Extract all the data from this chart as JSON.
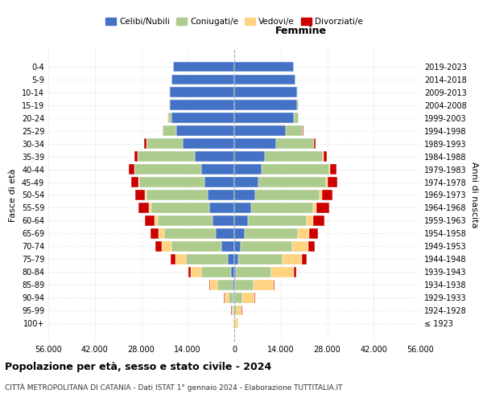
{
  "age_groups": [
    "100+",
    "95-99",
    "90-94",
    "85-89",
    "80-84",
    "75-79",
    "70-74",
    "65-69",
    "60-64",
    "55-59",
    "50-54",
    "45-49",
    "40-44",
    "35-39",
    "30-34",
    "25-29",
    "20-24",
    "15-19",
    "10-14",
    "5-9",
    "0-4"
  ],
  "birth_years": [
    "≤ 1923",
    "1924-1928",
    "1929-1933",
    "1934-1938",
    "1939-1943",
    "1944-1948",
    "1949-1953",
    "1954-1958",
    "1959-1963",
    "1964-1968",
    "1969-1973",
    "1974-1978",
    "1979-1983",
    "1984-1988",
    "1989-1993",
    "1994-1998",
    "1999-2003",
    "2004-2008",
    "2009-2013",
    "2014-2018",
    "2019-2023"
  ],
  "colors": {
    "celibe": "#4472C4",
    "coniugato": "#AECB8E",
    "vedovo": "#FFD380",
    "divorziato": "#CC0000"
  },
  "males_celibe": [
    80,
    120,
    250,
    500,
    1000,
    2000,
    4000,
    5500,
    6500,
    7500,
    8000,
    9000,
    10000,
    12000,
    15500,
    17500,
    19000,
    19500,
    19500,
    19000,
    18500
  ],
  "males_coniugato": [
    80,
    250,
    1500,
    4500,
    9000,
    12500,
    15000,
    15500,
    16500,
    17500,
    18500,
    19500,
    20000,
    17000,
    11000,
    4000,
    1000,
    200,
    80,
    0,
    0
  ],
  "males_vedovo": [
    250,
    400,
    1200,
    2200,
    3200,
    3200,
    2800,
    1900,
    1100,
    650,
    380,
    250,
    130,
    70,
    40,
    15,
    8,
    3,
    0,
    0,
    0
  ],
  "males_divorziato": [
    40,
    80,
    130,
    280,
    550,
    1400,
    1900,
    2400,
    2900,
    3300,
    2900,
    2400,
    1700,
    1100,
    550,
    180,
    70,
    15,
    8,
    0,
    0
  ],
  "females_nubile": [
    80,
    120,
    180,
    280,
    550,
    1100,
    2000,
    3200,
    4200,
    5200,
    6200,
    7200,
    8200,
    9200,
    12500,
    15500,
    18000,
    19000,
    19000,
    18500,
    18000
  ],
  "females_coniugata": [
    180,
    550,
    2200,
    5500,
    10500,
    13500,
    15500,
    16000,
    17500,
    18500,
    19500,
    20500,
    20500,
    17500,
    11500,
    5000,
    1400,
    350,
    80,
    0,
    0
  ],
  "females_vedova": [
    900,
    1600,
    3700,
    6000,
    7000,
    5700,
    4800,
    3300,
    2100,
    1100,
    650,
    380,
    180,
    90,
    45,
    18,
    8,
    4,
    0,
    0,
    0
  ],
  "females_divorziata": [
    40,
    90,
    180,
    370,
    650,
    1400,
    1900,
    2700,
    3300,
    3800,
    3300,
    2900,
    1900,
    1100,
    550,
    230,
    90,
    25,
    8,
    0,
    0
  ],
  "xlim": 56000,
  "xticks": [
    -56000,
    -42000,
    -28000,
    -14000,
    0,
    14000,
    28000,
    42000,
    56000
  ],
  "xtick_labels": [
    "56.000",
    "42.000",
    "28.000",
    "14.000",
    "0",
    "14.000",
    "28.000",
    "42.000",
    "56.000"
  ],
  "title": "Popolazione per età, sesso e stato civile - 2024",
  "subtitle": "CITTÀ METROPOLITANA DI CATANIA - Dati ISTAT 1° gennaio 2024 - Elaborazione TUTTITALIA.IT",
  "ylabel_left": "Fasce di età",
  "ylabel_right": "Anni di nascita",
  "label_femmine": "Femmine",
  "legend_labels": [
    "Celibi/Nubili",
    "Coniugati/e",
    "Vedovi/e",
    "Divorziati/e"
  ],
  "background_color": "#ffffff",
  "grid_color": "#cccccc"
}
